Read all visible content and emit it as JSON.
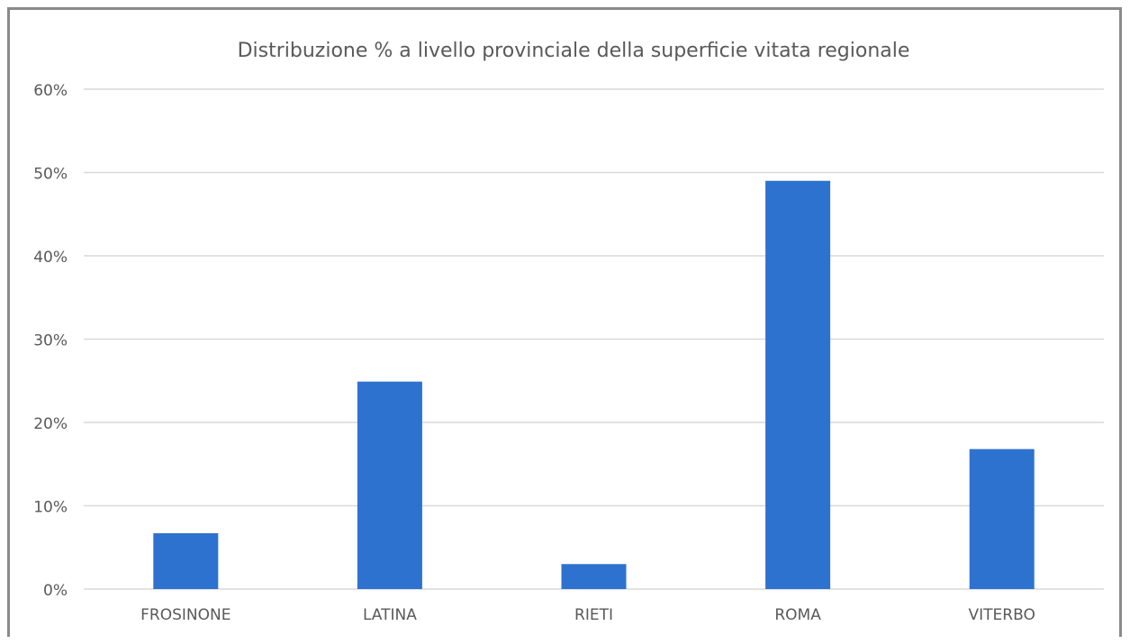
{
  "chart_data": {
    "type": "bar",
    "title": "Distribuzione  % a livello provinciale della superficie vitata regionale",
    "categories": [
      "FROSINONE",
      "LATINA",
      "RIETI",
      "ROMA",
      "VITERBO"
    ],
    "values": [
      6.7,
      24.9,
      3.0,
      49.0,
      16.8
    ],
    "ylim": [
      0,
      60
    ],
    "yticks": [
      0,
      10,
      20,
      30,
      40,
      50,
      60
    ],
    "ytick_labels": [
      "0%",
      "10%",
      "20%",
      "30%",
      "40%",
      "50%",
      "60%"
    ],
    "grid": true,
    "legend": "none",
    "bar_color": "#2e72cf",
    "grid_color": "#d9d9d9"
  }
}
